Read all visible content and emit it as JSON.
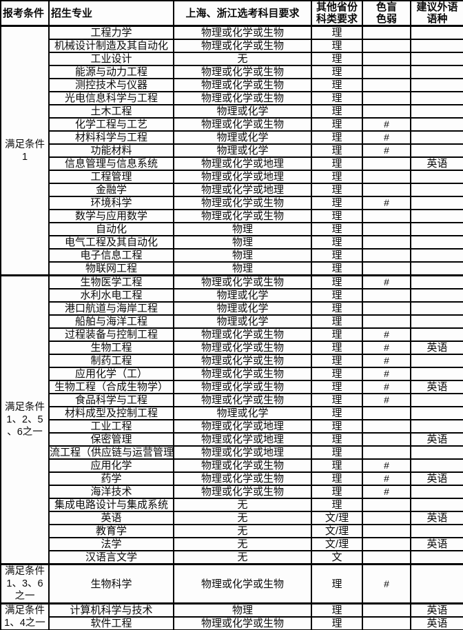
{
  "table": {
    "headers": [
      "报考条件",
      "招生专业",
      "上海、浙江选考科目要求",
      "其他省份\n科类要求",
      "色盲\n色弱",
      "建议外语\n语种"
    ],
    "groups": [
      {
        "condition": "满足条件\n1",
        "rows": [
          [
            "工程力学",
            "物理或化学或生物",
            "理",
            "",
            ""
          ],
          [
            "机械设计制造及其自动化",
            "物理或化学或生物",
            "理",
            "",
            ""
          ],
          [
            "工业设计",
            "无",
            "理",
            "",
            ""
          ],
          [
            "能源与动力工程",
            "物理或化学或生物",
            "理",
            "",
            ""
          ],
          [
            "测控技术与仪器",
            "物理或化学或生物",
            "理",
            "",
            ""
          ],
          [
            "光电信息科学与工程",
            "物理或化学或生物",
            "理",
            "",
            ""
          ],
          [
            "土木工程",
            "物理或化学",
            "理",
            "",
            ""
          ],
          [
            "化学工程与工艺",
            "物理或化学或生物",
            "理",
            "#",
            ""
          ],
          [
            "材料科学与工程",
            "物理或化学",
            "理",
            "#",
            ""
          ],
          [
            "功能材料",
            "物理或化学",
            "理",
            "#",
            ""
          ],
          [
            "信息管理与信息系统",
            "物理或化学或地理",
            "理",
            "",
            "英语"
          ],
          [
            "工程管理",
            "物理或化学或地理",
            "理",
            "",
            ""
          ],
          [
            "金融学",
            "物理或化学或地理",
            "理",
            "",
            ""
          ],
          [
            "环境科学",
            "物理或化学或生物",
            "理",
            "#",
            ""
          ],
          [
            "数学与应用数学",
            "物理或化学或生物",
            "理",
            "",
            ""
          ],
          [
            "自动化",
            "物理",
            "理",
            "",
            ""
          ],
          [
            "电气工程及其自动化",
            "物理",
            "理",
            "",
            ""
          ],
          [
            "电子信息工程",
            "物理",
            "理",
            "",
            ""
          ],
          [
            "物联网工程",
            "物理",
            "理",
            "",
            ""
          ]
        ]
      },
      {
        "condition": "满足条件\n1、2、5\n、6之一",
        "rows": [
          [
            "生物医学工程",
            "物理或化学或生物",
            "理",
            "#",
            ""
          ],
          [
            "水利水电工程",
            "物理或化学",
            "理",
            "",
            ""
          ],
          [
            "港口航道与海岸工程",
            "物理或化学",
            "理",
            "",
            ""
          ],
          [
            "船舶与海洋工程",
            "物理或化学",
            "理",
            "",
            ""
          ],
          [
            "过程装备与控制工程",
            "物理或化学或生物",
            "理",
            "#",
            ""
          ],
          [
            "生物工程",
            "物理或化学或生物",
            "理",
            "#",
            "英语"
          ],
          [
            "制药工程",
            "物理或化学或生物",
            "理",
            "#",
            ""
          ],
          [
            "应用化学（工）",
            "物理或化学或生物",
            "理",
            "#",
            ""
          ],
          [
            "生物工程（合成生物学）",
            "物理或化学或生物",
            "理",
            "#",
            "英语"
          ],
          [
            "食品科学与工程",
            "物理或化学或生物",
            "理",
            "#",
            ""
          ],
          [
            "材料成型及控制工程",
            "物理或化学",
            "理",
            "",
            ""
          ],
          [
            "工业工程",
            "物理或化学或地理",
            "理",
            "",
            ""
          ],
          [
            "保密管理",
            "物理或化学或地理",
            "理",
            "",
            "英语"
          ],
          [
            "流工程（供应链与运营管理",
            "物理或化学或地理",
            "理",
            "",
            ""
          ],
          [
            "应用化学",
            "物理或化学或生物",
            "理",
            "#",
            ""
          ],
          [
            "药学",
            "物理或化学或生物",
            "理",
            "#",
            "英语"
          ],
          [
            "海洋技术",
            "物理或化学或生物",
            "理",
            "#",
            ""
          ],
          [
            "集成电路设计与集成系统",
            "无",
            "理",
            "",
            ""
          ],
          [
            "英语",
            "无",
            "文/理",
            "",
            "英语"
          ],
          [
            "教育学",
            "无",
            "文/理",
            "",
            ""
          ],
          [
            "法学",
            "无",
            "文/理",
            "",
            "英语"
          ],
          [
            "汉语言文学",
            "无",
            "文",
            "",
            ""
          ]
        ]
      },
      {
        "condition": "满足条件\n1、3、6\n之一",
        "rows": [
          [
            "生物科学",
            "物理或化学或生物",
            "理",
            "#",
            ""
          ]
        ]
      },
      {
        "condition": "满足条件\n1、4之一",
        "rows": [
          [
            "计算机科学与技术",
            "物理",
            "理",
            "",
            "英语"
          ],
          [
            "软件工程",
            "物理或化学或生物",
            "理",
            "",
            "英语"
          ]
        ]
      }
    ]
  }
}
